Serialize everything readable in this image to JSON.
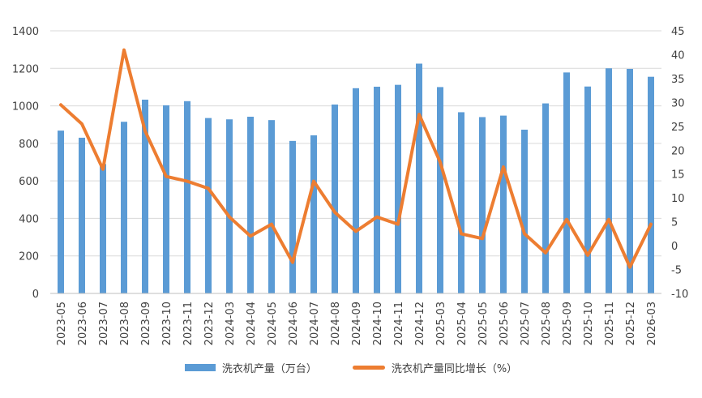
{
  "chart_data": {
    "type": "bar+line",
    "categories": [
      "2023-05",
      "2023-06",
      "2023-07",
      "2023-08",
      "2023-09",
      "2023-10",
      "2023-11",
      "2023-12",
      "2024-03",
      "2024-04",
      "2024-05",
      "2024-06",
      "2024-07",
      "2024-08",
      "2024-09",
      "2024-10",
      "2024-11",
      "2024-12",
      "2025-03",
      "2025-04",
      "2025-05",
      "2025-06",
      "2025-07",
      "2025-08",
      "2025-09",
      "2025-10",
      "2025-11",
      "2025-12",
      "2026-03"
    ],
    "series": [
      {
        "name": "洗衣机产量（万台）",
        "type": "bar",
        "axis": "left",
        "color": "#5b9bd5",
        "values": [
          868,
          830,
          690,
          915,
          1033,
          1003,
          1025,
          935,
          928,
          942,
          924,
          813,
          843,
          1007,
          1094,
          1102,
          1112,
          1225,
          1100,
          966,
          940,
          948,
          873,
          1013,
          1178,
          1103,
          1200,
          1197,
          1155
        ]
      },
      {
        "name": "洗衣机产量同比增长（%）",
        "type": "line",
        "axis": "right",
        "color": "#ed7d31",
        "values": [
          29.5,
          25.5,
          16,
          41,
          24,
          14.5,
          13.5,
          12,
          6,
          2,
          4.5,
          -3.5,
          13.5,
          7,
          3,
          6,
          4.5,
          27.5,
          17.5,
          2.5,
          1.5,
          16.5,
          2.5,
          -1.5,
          5.5,
          -2,
          5.5,
          -4.5,
          4.5
        ]
      }
    ],
    "y_left": {
      "min": 0,
      "max": 1400,
      "ticks": [
        0,
        200,
        400,
        600,
        800,
        1000,
        1200,
        1400
      ]
    },
    "y_right": {
      "min": -10,
      "max": 45,
      "ticks": [
        -10,
        -5,
        0,
        5,
        10,
        15,
        20,
        25,
        30,
        35,
        40,
        45
      ]
    },
    "grid": true,
    "legend_position": "bottom",
    "title": "",
    "xlabel": "",
    "ylabel": ""
  }
}
